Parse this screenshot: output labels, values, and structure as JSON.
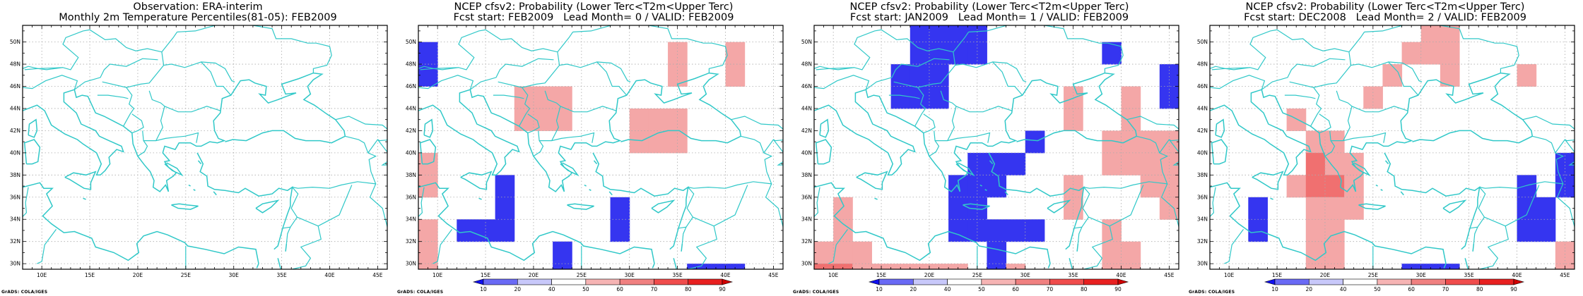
{
  "panels": [
    {
      "title1": "Observation: ERA-interim",
      "title2": "Monthly 2m Temperature Percentiles(81-05): FEB2009",
      "credit": "GrADS: COLA/IGES",
      "cells": [],
      "colorbar": false
    },
    {
      "title1": "NCEP cfsv2: Probability (Lower Terc<T2m<Upper Terc)",
      "title2": "Fcst start: FEB2009   Lead Month= 0 / VALID: FEB2009",
      "credit": "GrADS: COLA/IGES",
      "colorbar": true,
      "cells": [
        {
          "lon": 9,
          "lat": 49,
          "cat": "blue"
        },
        {
          "lon": 9,
          "lat": 47,
          "cat": "blue"
        },
        {
          "lon": 35,
          "lat": 49,
          "cat": "pink"
        },
        {
          "lon": 35,
          "lat": 47,
          "cat": "pink"
        },
        {
          "lon": 41,
          "lat": 49,
          "cat": "pink"
        },
        {
          "lon": 41,
          "lat": 47,
          "cat": "pink"
        },
        {
          "lon": 19,
          "lat": 45,
          "cat": "pink"
        },
        {
          "lon": 21,
          "lat": 45,
          "cat": "pink"
        },
        {
          "lon": 23,
          "lat": 45,
          "cat": "pink"
        },
        {
          "lon": 19,
          "lat": 43,
          "cat": "pink"
        },
        {
          "lon": 21,
          "lat": 43,
          "cat": "pink"
        },
        {
          "lon": 23,
          "lat": 43,
          "cat": "pink"
        },
        {
          "lon": 31,
          "lat": 43,
          "cat": "pink"
        },
        {
          "lon": 33,
          "lat": 43,
          "cat": "pink"
        },
        {
          "lon": 35,
          "lat": 43,
          "cat": "pink"
        },
        {
          "lon": 31,
          "lat": 41,
          "cat": "pink"
        },
        {
          "lon": 33,
          "lat": 41,
          "cat": "pink"
        },
        {
          "lon": 35,
          "lat": 41,
          "cat": "pink"
        },
        {
          "lon": 9,
          "lat": 39,
          "cat": "pink"
        },
        {
          "lon": 9,
          "lat": 37,
          "cat": "pink"
        },
        {
          "lon": 17,
          "lat": 37,
          "cat": "blue"
        },
        {
          "lon": 17,
          "lat": 35,
          "cat": "blue"
        },
        {
          "lon": 13,
          "lat": 33,
          "cat": "blue"
        },
        {
          "lon": 15,
          "lat": 33,
          "cat": "blue"
        },
        {
          "lon": 17,
          "lat": 33,
          "cat": "blue"
        },
        {
          "lon": 29,
          "lat": 33,
          "cat": "blue"
        },
        {
          "lon": 29,
          "lat": 35,
          "cat": "blue"
        },
        {
          "lon": 9,
          "lat": 33,
          "cat": "pink"
        },
        {
          "lon": 9,
          "lat": 31,
          "cat": "pink"
        },
        {
          "lon": 9,
          "lat": 29,
          "cat": "pink"
        },
        {
          "lon": 23,
          "lat": 31,
          "cat": "blue"
        },
        {
          "lon": 23,
          "lat": 29,
          "cat": "blue"
        },
        {
          "lon": 37,
          "lat": 29,
          "cat": "blue"
        },
        {
          "lon": 39,
          "lat": 29,
          "cat": "blue"
        },
        {
          "lon": 41,
          "lat": 29,
          "cat": "blue"
        }
      ]
    },
    {
      "title1": "NCEP cfsv2: Probability (Lower Terc<T2m<Upper Terc)",
      "title2": "Fcst start: JAN2009   Lead Month= 1 / VALID: FEB2009",
      "credit": "GrADS: COLA/IGES",
      "colorbar": true,
      "cells": [
        {
          "lon": 19,
          "lat": 51,
          "cat": "blue"
        },
        {
          "lon": 21,
          "lat": 51,
          "cat": "blue"
        },
        {
          "lon": 23,
          "lat": 51,
          "cat": "blue"
        },
        {
          "lon": 25,
          "lat": 51,
          "cat": "blue"
        },
        {
          "lon": 19,
          "lat": 49,
          "cat": "blue"
        },
        {
          "lon": 21,
          "lat": 49,
          "cat": "blue"
        },
        {
          "lon": 23,
          "lat": 49,
          "cat": "blue"
        },
        {
          "lon": 25,
          "lat": 49,
          "cat": "blue"
        },
        {
          "lon": 17,
          "lat": 47,
          "cat": "blue"
        },
        {
          "lon": 19,
          "lat": 47,
          "cat": "blue"
        },
        {
          "lon": 21,
          "lat": 47,
          "cat": "blue"
        },
        {
          "lon": 17,
          "lat": 45,
          "cat": "blue"
        },
        {
          "lon": 19,
          "lat": 45,
          "cat": "blue"
        },
        {
          "lon": 21,
          "lat": 45,
          "cat": "blue"
        },
        {
          "lon": 39,
          "lat": 49,
          "cat": "blue"
        },
        {
          "lon": 45,
          "lat": 47,
          "cat": "blue"
        },
        {
          "lon": 45,
          "lat": 45,
          "cat": "blue"
        },
        {
          "lon": 35,
          "lat": 45,
          "cat": "pink"
        },
        {
          "lon": 35,
          "lat": 43,
          "cat": "pink"
        },
        {
          "lon": 41,
          "lat": 45,
          "cat": "pink"
        },
        {
          "lon": 41,
          "lat": 43,
          "cat": "pink"
        },
        {
          "lon": 39,
          "lat": 41,
          "cat": "pink"
        },
        {
          "lon": 41,
          "lat": 41,
          "cat": "pink"
        },
        {
          "lon": 43,
          "lat": 41,
          "cat": "pink"
        },
        {
          "lon": 45,
          "lat": 41,
          "cat": "pink"
        },
        {
          "lon": 39,
          "lat": 39,
          "cat": "pink"
        },
        {
          "lon": 41,
          "lat": 39,
          "cat": "pink"
        },
        {
          "lon": 43,
          "lat": 39,
          "cat": "pink"
        },
        {
          "lon": 45,
          "lat": 39,
          "cat": "pink"
        },
        {
          "lon": 43,
          "lat": 37,
          "cat": "pink"
        },
        {
          "lon": 45,
          "lat": 37,
          "cat": "pink"
        },
        {
          "lon": 45,
          "lat": 35,
          "cat": "pink"
        },
        {
          "lon": 31,
          "lat": 41,
          "cat": "blue"
        },
        {
          "lon": 25,
          "lat": 39,
          "cat": "blue"
        },
        {
          "lon": 27,
          "lat": 39,
          "cat": "blue"
        },
        {
          "lon": 29,
          "lat": 39,
          "cat": "blue"
        },
        {
          "lon": 23,
          "lat": 37,
          "cat": "blue"
        },
        {
          "lon": 25,
          "lat": 37,
          "cat": "blue"
        },
        {
          "lon": 27,
          "lat": 37,
          "cat": "blue"
        },
        {
          "lon": 23,
          "lat": 35,
          "cat": "blue"
        },
        {
          "lon": 25,
          "lat": 35,
          "cat": "blue"
        },
        {
          "lon": 23,
          "lat": 33,
          "cat": "blue"
        },
        {
          "lon": 25,
          "lat": 33,
          "cat": "blue"
        },
        {
          "lon": 27,
          "lat": 33,
          "cat": "blue"
        },
        {
          "lon": 29,
          "lat": 33,
          "cat": "blue"
        },
        {
          "lon": 31,
          "lat": 33,
          "cat": "blue"
        },
        {
          "lon": 27,
          "lat": 31,
          "cat": "blue"
        },
        {
          "lon": 27,
          "lat": 29,
          "cat": "blue"
        },
        {
          "lon": 35,
          "lat": 35,
          "cat": "pink"
        },
        {
          "lon": 35,
          "lat": 37,
          "cat": "pink"
        },
        {
          "lon": 11,
          "lat": 35,
          "cat": "pink"
        },
        {
          "lon": 11,
          "lat": 33,
          "cat": "pink"
        },
        {
          "lon": 9,
          "lat": 31,
          "cat": "pink"
        },
        {
          "lon": 11,
          "lat": 31,
          "cat": "pink"
        },
        {
          "lon": 13,
          "lat": 31,
          "cat": "pink"
        },
        {
          "lon": 9,
          "lat": 29,
          "cat": "red"
        },
        {
          "lon": 11,
          "lat": 29,
          "cat": "red"
        },
        {
          "lon": 13,
          "lat": 29,
          "cat": "pink"
        },
        {
          "lon": 15,
          "lat": 29,
          "cat": "pink"
        },
        {
          "lon": 17,
          "lat": 29,
          "cat": "pink"
        },
        {
          "lon": 19,
          "lat": 29,
          "cat": "pink"
        },
        {
          "lon": 21,
          "lat": 29,
          "cat": "pink"
        },
        {
          "lon": 23,
          "lat": 29,
          "cat": "pink"
        },
        {
          "lon": 29,
          "lat": 29,
          "cat": "pink"
        },
        {
          "lon": 39,
          "lat": 33,
          "cat": "pink"
        },
        {
          "lon": 39,
          "lat": 31,
          "cat": "pink"
        },
        {
          "lon": 41,
          "lat": 31,
          "cat": "pink"
        },
        {
          "lon": 39,
          "lat": 29,
          "cat": "pink"
        },
        {
          "lon": 41,
          "lat": 29,
          "cat": "pink"
        }
      ]
    },
    {
      "title1": "NCEP cfsv2: Probability (Lower Terc<T2m<Upper Terc)",
      "title2": "Fcst start: DEC2008   Lead Month= 2 / VALID: FEB2009",
      "credit": "GrADS: COLA/IGES",
      "colorbar": true,
      "cells": [
        {
          "lon": 31,
          "lat": 51,
          "cat": "pink"
        },
        {
          "lon": 33,
          "lat": 51,
          "cat": "pink"
        },
        {
          "lon": 29,
          "lat": 49,
          "cat": "pink"
        },
        {
          "lon": 31,
          "lat": 49,
          "cat": "pink"
        },
        {
          "lon": 33,
          "lat": 49,
          "cat": "pink"
        },
        {
          "lon": 33,
          "lat": 47,
          "cat": "pink"
        },
        {
          "lon": 27,
          "lat": 47,
          "cat": "pink"
        },
        {
          "lon": 41,
          "lat": 47,
          "cat": "pink"
        },
        {
          "lon": 25,
          "lat": 45,
          "cat": "pink"
        },
        {
          "lon": 17,
          "lat": 43,
          "cat": "pink"
        },
        {
          "lon": 19,
          "lat": 41,
          "cat": "pink"
        },
        {
          "lon": 21,
          "lat": 41,
          "cat": "pink"
        },
        {
          "lon": 19,
          "lat": 39,
          "cat": "red"
        },
        {
          "lon": 21,
          "lat": 39,
          "cat": "pink"
        },
        {
          "lon": 23,
          "lat": 39,
          "cat": "pink"
        },
        {
          "lon": 17,
          "lat": 37,
          "cat": "pink"
        },
        {
          "lon": 19,
          "lat": 37,
          "cat": "red"
        },
        {
          "lon": 21,
          "lat": 37,
          "cat": "red"
        },
        {
          "lon": 23,
          "lat": 37,
          "cat": "pink"
        },
        {
          "lon": 19,
          "lat": 35,
          "cat": "pink"
        },
        {
          "lon": 21,
          "lat": 35,
          "cat": "pink"
        },
        {
          "lon": 23,
          "lat": 35,
          "cat": "pink"
        },
        {
          "lon": 19,
          "lat": 33,
          "cat": "pink"
        },
        {
          "lon": 21,
          "lat": 33,
          "cat": "pink"
        },
        {
          "lon": 19,
          "lat": 31,
          "cat": "pink"
        },
        {
          "lon": 21,
          "lat": 31,
          "cat": "pink"
        },
        {
          "lon": 19,
          "lat": 29,
          "cat": "pink"
        },
        {
          "lon": 21,
          "lat": 29,
          "cat": "pink"
        },
        {
          "lon": 13,
          "lat": 35,
          "cat": "blue"
        },
        {
          "lon": 13,
          "lat": 33,
          "cat": "blue"
        },
        {
          "lon": 41,
          "lat": 37,
          "cat": "blue"
        },
        {
          "lon": 41,
          "lat": 35,
          "cat": "blue"
        },
        {
          "lon": 43,
          "lat": 35,
          "cat": "blue"
        },
        {
          "lon": 41,
          "lat": 33,
          "cat": "blue"
        },
        {
          "lon": 43,
          "lat": 33,
          "cat": "blue"
        },
        {
          "lon": 45,
          "lat": 39,
          "cat": "blue"
        },
        {
          "lon": 45,
          "lat": 37,
          "cat": "blue"
        },
        {
          "lon": 29,
          "lat": 29,
          "cat": "blue"
        },
        {
          "lon": 31,
          "lat": 29,
          "cat": "blue"
        },
        {
          "lon": 33,
          "lat": 29,
          "cat": "blue"
        },
        {
          "lon": 45,
          "lat": 31,
          "cat": "pink"
        },
        {
          "lon": 45,
          "lat": 29,
          "cat": "pink"
        }
      ]
    }
  ],
  "map": {
    "lon_range": [
      8,
      46
    ],
    "lat_range": [
      29.5,
      51.5
    ],
    "lon_ticks": [
      10,
      15,
      20,
      25,
      30,
      35,
      40,
      45
    ],
    "lon_tick_labels": [
      "10E",
      "15E",
      "20E",
      "25E",
      "30E",
      "35E",
      "40E",
      "45E"
    ],
    "lat_ticks": [
      30,
      32,
      34,
      36,
      38,
      40,
      42,
      44,
      46,
      48,
      50
    ],
    "lat_tick_labels": [
      "30N",
      "32N",
      "34N",
      "36N",
      "38N",
      "40N",
      "42N",
      "44N",
      "46N",
      "48N",
      "50N"
    ],
    "coast_color": "#30c8c8",
    "cell_colors": {
      "blue": "#3535f0",
      "pink": "#f4a7a7",
      "red": "#f07070"
    }
  },
  "colorbar": {
    "labels": [
      "10",
      "20",
      "40",
      "50",
      "60",
      "70",
      "80",
      "90"
    ],
    "colors": [
      "#1010f0",
      "#6a6af5",
      "#c8c8fa",
      "#ffffff",
      "#f6b4b4",
      "#f08080",
      "#f04c4c",
      "#e82020",
      "#d00000"
    ]
  }
}
